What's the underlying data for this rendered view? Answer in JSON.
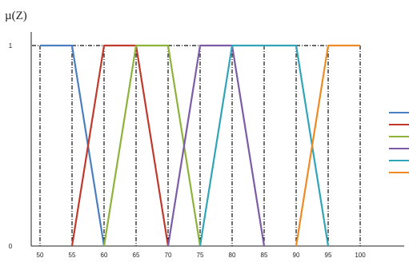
{
  "chart_data": {
    "type": "line",
    "title": "µ(Z)",
    "xlabel": "",
    "ylabel": "",
    "x_ticks": [
      "50",
      "55",
      "60",
      "65",
      "70",
      "75",
      "80",
      "85",
      "90",
      "95",
      "100"
    ],
    "y_ticks": [
      "0",
      "1"
    ],
    "xlim": [
      50,
      100
    ],
    "ylim": [
      0,
      1
    ],
    "grid": "vertical dash-dot lines at each tick, dash-dot line at µ=1",
    "legend_position": "right",
    "series": [
      {
        "color": "#4a7fc1",
        "x": [
          50,
          55,
          60
        ],
        "y": [
          1,
          1,
          0
        ]
      },
      {
        "color": "#c0392b",
        "x": [
          55,
          60,
          65,
          70
        ],
        "y": [
          0,
          1,
          1,
          0
        ]
      },
      {
        "color": "#8db33a",
        "x": [
          60,
          65,
          70,
          75
        ],
        "y": [
          0,
          1,
          1,
          0
        ]
      },
      {
        "color": "#7d5ba6",
        "x": [
          70,
          75,
          80,
          85
        ],
        "y": [
          0,
          1,
          1,
          0
        ]
      },
      {
        "color": "#31a5b8",
        "x": [
          75,
          80,
          85,
          90,
          95
        ],
        "y": [
          0,
          1,
          1,
          1,
          0
        ]
      },
      {
        "color": "#f08a24",
        "x": [
          90,
          95,
          100
        ],
        "y": [
          0,
          1,
          1
        ]
      }
    ]
  }
}
